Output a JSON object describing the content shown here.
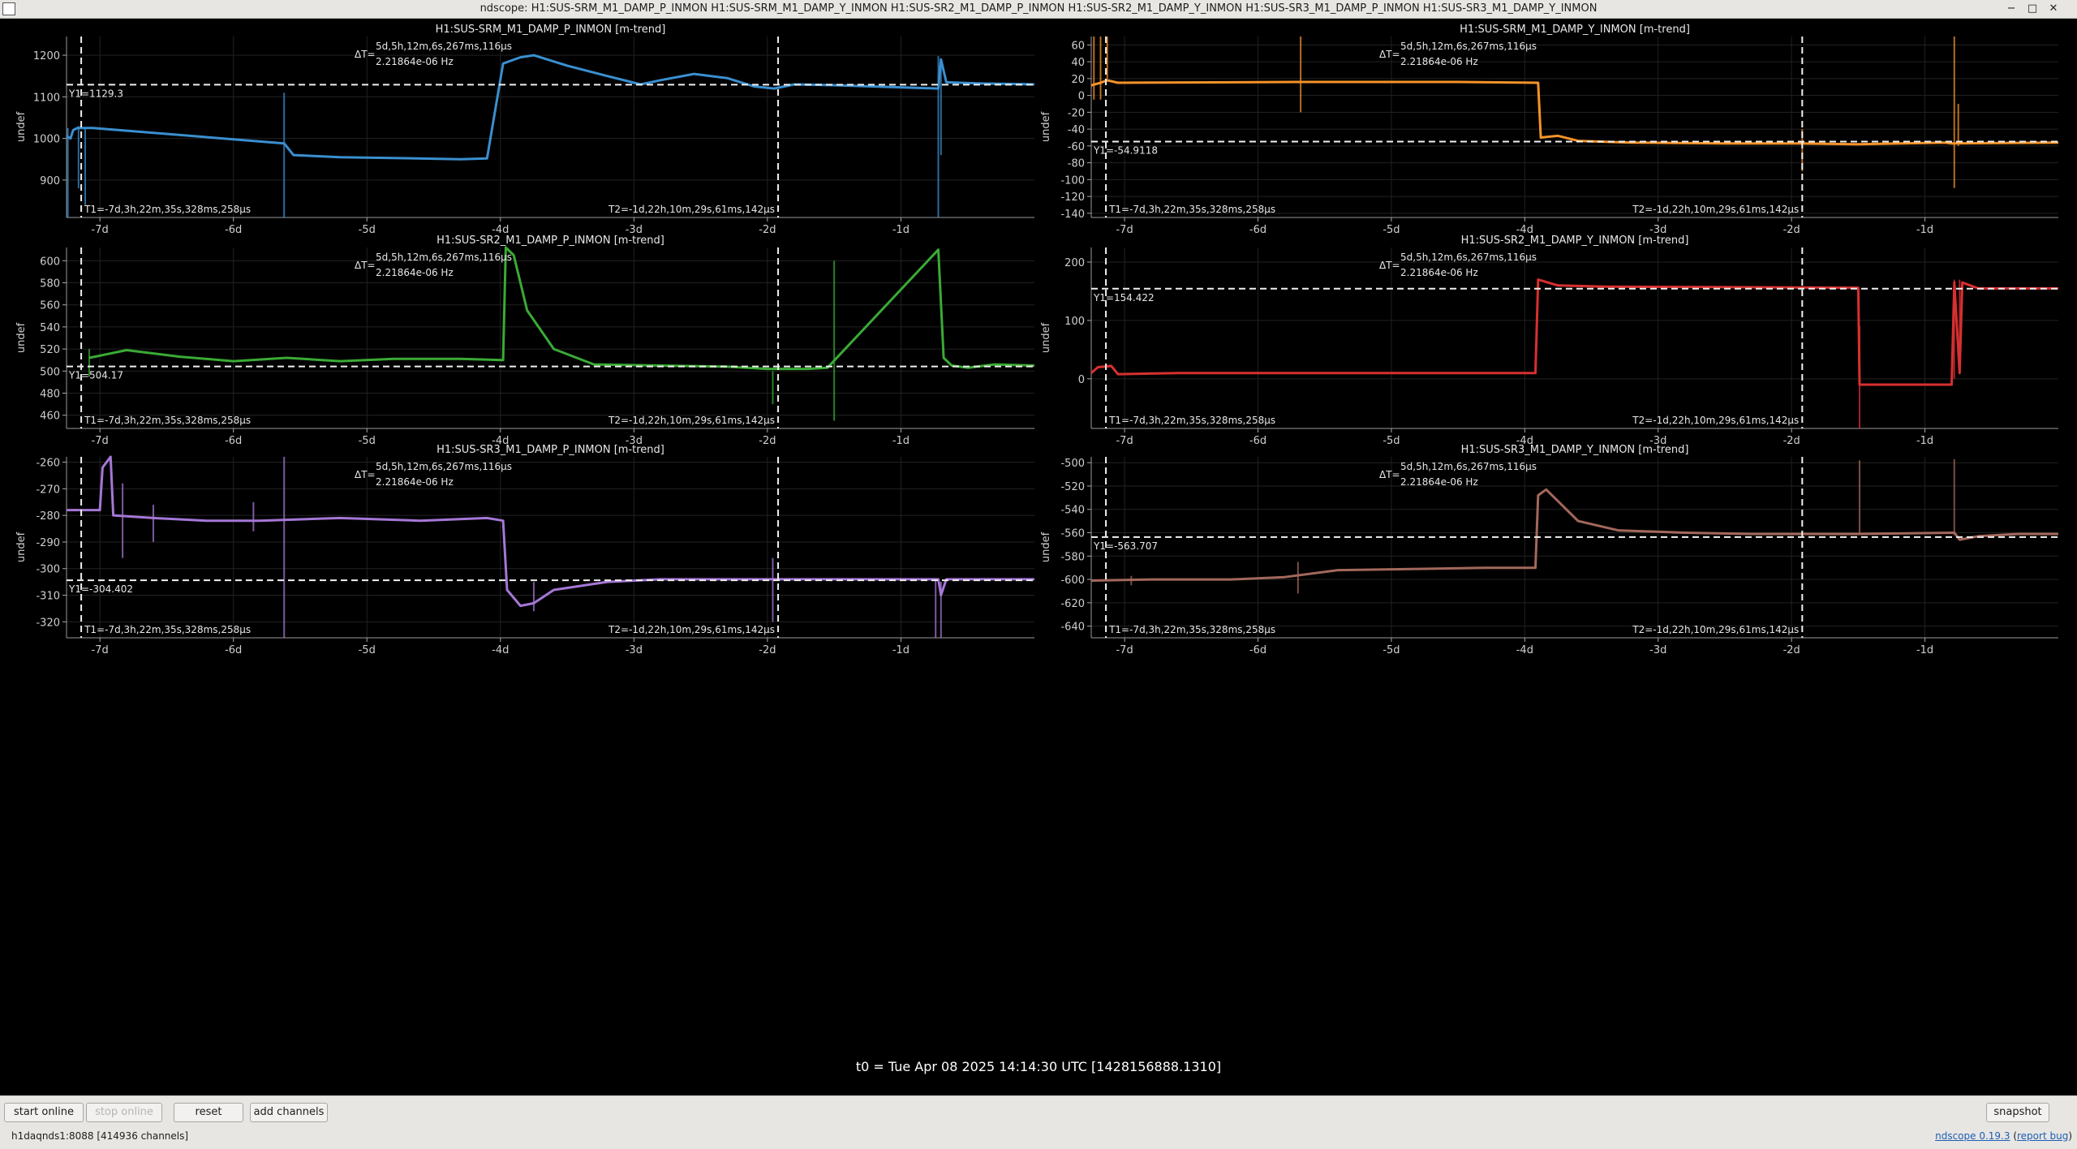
{
  "window": {
    "title": "ndscope: H1:SUS-SRM_M1_DAMP_P_INMON H1:SUS-SRM_M1_DAMP_Y_INMON H1:SUS-SR2_M1_DAMP_P_INMON H1:SUS-SR2_M1_DAMP_Y_INMON H1:SUS-SR3_M1_DAMP_P_INMON H1:SUS-SR3_M1_DAMP_Y_INMON",
    "buttons": {
      "minimize": "−",
      "maximize": "□",
      "close": "✕"
    }
  },
  "cursors": {
    "delta_t_label": "ΔT=",
    "delta_t_value": "5d,5h,12m,6s,267ms,116µs",
    "delta_t_freq": "2.21864e-06 Hz",
    "t1": "T1=-7d,3h,22m,35s,328ms,258µs",
    "t2": "T2=-1d,22h,10m,29s,61ms,142µs",
    "t1_days": -7.14,
    "t2_days": -1.92
  },
  "x_axis": {
    "range": [
      -7.25,
      0.0
    ],
    "ticks": [
      -7,
      -6,
      -5,
      -4,
      -3,
      -2,
      -1
    ],
    "tick_labels": [
      "-7d",
      "-6d",
      "-5d",
      "-4d",
      "-3d",
      "-2d",
      "-1d"
    ]
  },
  "plots": [
    {
      "title": "H1:SUS-SRM_M1_DAMP_P_INMON [m-trend]",
      "ylabel": "undef",
      "color": "#3a8fd0",
      "ylim": [
        810,
        1245
      ],
      "yticks": [
        900,
        1000,
        1100,
        1200
      ],
      "y1_label": "Y1=1129.3",
      "y1": 1129.3,
      "series": [
        [
          -7.25,
          1005
        ],
        [
          -7.22,
          1000
        ],
        [
          -7.2,
          1020
        ],
        [
          -7.17,
          1025
        ],
        [
          -7.05,
          1025
        ],
        [
          -5.62,
          988
        ],
        [
          -5.55,
          960
        ],
        [
          -5.2,
          955
        ],
        [
          -4.8,
          953
        ],
        [
          -4.3,
          950
        ],
        [
          -4.1,
          952
        ],
        [
          -3.98,
          1180
        ],
        [
          -3.85,
          1195
        ],
        [
          -3.75,
          1200
        ],
        [
          -3.5,
          1175
        ],
        [
          -3.2,
          1150
        ],
        [
          -2.95,
          1130
        ],
        [
          -2.8,
          1140
        ],
        [
          -2.55,
          1155
        ],
        [
          -2.3,
          1145
        ],
        [
          -2.1,
          1125
        ],
        [
          -1.95,
          1120
        ],
        [
          -1.8,
          1130
        ],
        [
          -1.5,
          1128
        ],
        [
          -0.72,
          1120
        ],
        [
          -0.7,
          1190
        ],
        [
          -0.66,
          1135
        ],
        [
          -0.4,
          1132
        ],
        [
          0,
          1130
        ]
      ],
      "spikes": [
        [
          -7.24,
          1025,
          810
        ],
        [
          -7.16,
          1030,
          880
        ],
        [
          -7.11,
          1025,
          840
        ],
        [
          -5.62,
          1110,
          810
        ],
        [
          -0.72,
          1198,
          810
        ],
        [
          -0.7,
          1190,
          960
        ]
      ]
    },
    {
      "title": "H1:SUS-SRM_M1_DAMP_Y_INMON [m-trend]",
      "ylabel": "undef",
      "color": "#f4932a",
      "ylim": [
        -145,
        70
      ],
      "yticks": [
        -140,
        -120,
        -100,
        -80,
        -60,
        -40,
        -20,
        0,
        20,
        40,
        60
      ],
      "y1_label": "Y1=-54.9118",
      "y1": -54.9118,
      "series": [
        [
          -7.25,
          12
        ],
        [
          -7.18,
          15
        ],
        [
          -7.13,
          18
        ],
        [
          -7.05,
          15
        ],
        [
          -5.7,
          16
        ],
        [
          -5.55,
          16
        ],
        [
          -4.5,
          16
        ],
        [
          -3.9,
          15
        ],
        [
          -3.88,
          -50
        ],
        [
          -3.75,
          -48
        ],
        [
          -3.6,
          -54
        ],
        [
          -3.2,
          -56
        ],
        [
          -2.5,
          -57
        ],
        [
          -1.95,
          -57
        ],
        [
          -1.5,
          -58
        ],
        [
          -0.85,
          -56
        ],
        [
          -0.8,
          -57
        ],
        [
          0,
          -56
        ]
      ],
      "spikes": [
        [
          -7.23,
          70,
          -5
        ],
        [
          -7.18,
          70,
          -5
        ],
        [
          -7.13,
          70,
          20
        ],
        [
          -5.68,
          70,
          -20
        ],
        [
          -1.92,
          -40,
          -90
        ],
        [
          -0.78,
          70,
          -110
        ],
        [
          -0.75,
          -10,
          -60
        ]
      ]
    },
    {
      "title": "H1:SUS-SR2_M1_DAMP_P_INMON [m-trend]",
      "ylabel": "undef",
      "color": "#3aaa35",
      "ylim": [
        448,
        612
      ],
      "yticks": [
        460,
        480,
        500,
        520,
        540,
        560,
        580,
        600
      ],
      "y1_label": "Y1=504.17",
      "y1": 504.17,
      "series": [
        [
          -7.08,
          512
        ],
        [
          -6.8,
          519
        ],
        [
          -6.4,
          513
        ],
        [
          -6.0,
          509
        ],
        [
          -5.6,
          512
        ],
        [
          -5.2,
          509
        ],
        [
          -4.8,
          511
        ],
        [
          -4.3,
          511
        ],
        [
          -3.98,
          510
        ],
        [
          -3.96,
          612
        ],
        [
          -3.9,
          605
        ],
        [
          -3.8,
          555
        ],
        [
          -3.6,
          520
        ],
        [
          -3.3,
          506
        ],
        [
          -2.8,
          505
        ],
        [
          -2.3,
          504
        ],
        [
          -2.0,
          502
        ],
        [
          -1.7,
          502
        ],
        [
          -1.55,
          503
        ],
        [
          -0.72,
          610
        ],
        [
          -0.68,
          512
        ],
        [
          -0.62,
          505
        ],
        [
          -0.5,
          503
        ],
        [
          -0.3,
          506
        ],
        [
          0,
          505
        ]
      ],
      "spikes": [
        [
          -7.08,
          520,
          495
        ],
        [
          -1.96,
          500,
          470
        ],
        [
          -1.5,
          600,
          455
        ]
      ]
    },
    {
      "title": "H1:SUS-SR2_M1_DAMP_Y_INMON [m-trend]",
      "ylabel": "undef",
      "color": "#d83030",
      "ylim": [
        -85,
        225
      ],
      "yticks": [
        0,
        100,
        200
      ],
      "y1_label": "Y1=154.422",
      "y1": 154.422,
      "series": [
        [
          -7.25,
          10
        ],
        [
          -7.2,
          20
        ],
        [
          -7.1,
          22
        ],
        [
          -7.05,
          8
        ],
        [
          -6.6,
          10
        ],
        [
          -5.5,
          10
        ],
        [
          -4.5,
          10
        ],
        [
          -3.92,
          10
        ],
        [
          -3.9,
          170
        ],
        [
          -3.75,
          160
        ],
        [
          -3.4,
          158
        ],
        [
          -2.5,
          157
        ],
        [
          -1.5,
          156
        ],
        [
          -1.49,
          -10
        ],
        [
          -0.8,
          -10
        ],
        [
          -0.78,
          165
        ],
        [
          -0.74,
          10
        ],
        [
          -0.72,
          165
        ],
        [
          -0.6,
          155
        ],
        [
          0,
          155
        ]
      ],
      "spikes": [
        [
          -1.49,
          90,
          -85
        ],
        [
          -0.78,
          170,
          0
        ],
        [
          -0.74,
          170,
          10
        ]
      ]
    },
    {
      "title": "H1:SUS-SR3_M1_DAMP_P_INMON [m-trend]",
      "ylabel": "undef",
      "color": "#a577d6",
      "ylim": [
        -326,
        -258
      ],
      "yticks": [
        -320,
        -310,
        -300,
        -290,
        -280,
        -270,
        -260
      ],
      "y1_label": "Y1=-304.402",
      "y1": -304.402,
      "series": [
        [
          -7.25,
          -278
        ],
        [
          -7.0,
          -278
        ],
        [
          -6.98,
          -262
        ],
        [
          -6.92,
          -258
        ],
        [
          -6.9,
          -280
        ],
        [
          -6.6,
          -281
        ],
        [
          -6.2,
          -282
        ],
        [
          -5.8,
          -282
        ],
        [
          -5.2,
          -281
        ],
        [
          -4.6,
          -282
        ],
        [
          -4.1,
          -281
        ],
        [
          -3.98,
          -282
        ],
        [
          -3.95,
          -308
        ],
        [
          -3.85,
          -314
        ],
        [
          -3.75,
          -313
        ],
        [
          -3.6,
          -308
        ],
        [
          -3.2,
          -305
        ],
        [
          -2.8,
          -304
        ],
        [
          -2.2,
          -304
        ],
        [
          -1.6,
          -304
        ],
        [
          -0.72,
          -304
        ],
        [
          -0.7,
          -310
        ],
        [
          -0.66,
          -304
        ],
        [
          0,
          -304
        ]
      ],
      "spikes": [
        [
          -6.83,
          -268,
          -296
        ],
        [
          -6.6,
          -276,
          -290
        ],
        [
          -5.85,
          -275,
          -286
        ],
        [
          -5.62,
          -258,
          -326
        ],
        [
          -3.75,
          -305,
          -316
        ],
        [
          -1.96,
          -296,
          -320
        ],
        [
          -0.74,
          -304,
          -326
        ],
        [
          -0.7,
          -305,
          -326
        ]
      ]
    },
    {
      "title": "H1:SUS-SR3_M1_DAMP_Y_INMON [m-trend]",
      "ylabel": "undef",
      "color": "#a3685c",
      "ylim": [
        -650,
        -495
      ],
      "yticks": [
        -640,
        -620,
        -600,
        -580,
        -560,
        -540,
        -520,
        -500
      ],
      "y1_label": "Y1=-563.707",
      "y1": -563.707,
      "series": [
        [
          -7.25,
          -601
        ],
        [
          -6.8,
          -600
        ],
        [
          -6.2,
          -600
        ],
        [
          -5.8,
          -598
        ],
        [
          -5.4,
          -592
        ],
        [
          -4.8,
          -591
        ],
        [
          -4.3,
          -590
        ],
        [
          -3.92,
          -590
        ],
        [
          -3.9,
          -528
        ],
        [
          -3.84,
          -523
        ],
        [
          -3.75,
          -533
        ],
        [
          -3.6,
          -550
        ],
        [
          -3.3,
          -558
        ],
        [
          -2.8,
          -560
        ],
        [
          -2.3,
          -561
        ],
        [
          -1.8,
          -561
        ],
        [
          -1.5,
          -561
        ],
        [
          -0.78,
          -560
        ],
        [
          -0.74,
          -566
        ],
        [
          -0.6,
          -563
        ],
        [
          -0.3,
          -561
        ],
        [
          0,
          -561
        ]
      ],
      "spikes": [
        [
          -6.95,
          -597,
          -605
        ],
        [
          -5.7,
          -585,
          -612
        ],
        [
          -1.49,
          -498,
          -560
        ],
        [
          -0.78,
          -497,
          -562
        ]
      ]
    }
  ],
  "footer": {
    "t0": "t0 = Tue Apr 08 2025 14:14:30 UTC [1428156888.1310]",
    "buttons": {
      "start_online": "start online",
      "stop_online": "stop online",
      "reset": "reset",
      "add_channels": "add channels",
      "snapshot": "snapshot"
    },
    "status": "h1daqnds1:8088  [414936 channels]",
    "version_link": "ndscope 0.19.3",
    "report_bug": "report bug"
  }
}
